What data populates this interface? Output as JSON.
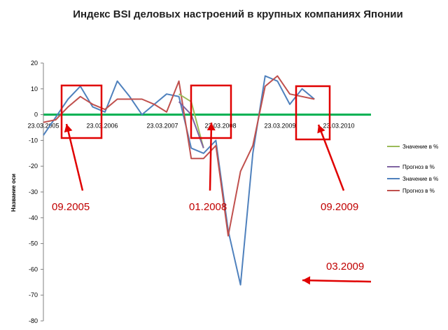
{
  "chart_data": {
    "type": "line",
    "title": "Индекс BSI деловых настроений в крупных компаниях Японии",
    "ylabel": "Название оси",
    "ylim": [
      -80,
      20
    ],
    "yticks": [
      20,
      10,
      0,
      -10,
      -20,
      -30,
      -40,
      -50,
      -60,
      -70,
      -80
    ],
    "xtick_labels": [
      "23.03.2005",
      "23.03.2006",
      "23.03.2007",
      "23.03.2008",
      "23.03.2009",
      "23.03.2010"
    ],
    "zero_line_color": "#00b050",
    "series": [
      {
        "name": "Значение в %",
        "color": "#9bbb59",
        "x": [
          "2007 Q4",
          "2008 Q1",
          "2008 Q2"
        ],
        "values": [
          8,
          5,
          -13
        ]
      },
      {
        "name": "Прогноз в %",
        "color": "#8064a2",
        "x": [
          "2007 Q4",
          "2008 Q1",
          "2008 Q2"
        ],
        "values": [
          5,
          0,
          -13
        ]
      },
      {
        "name": "Значение в %",
        "color": "#4f81bd",
        "x": [
          "2005 Q1",
          "2005 Q2",
          "2005 Q3",
          "2005 Q4",
          "2006 Q1",
          "2006 Q2",
          "2006 Q3",
          "2006 Q4",
          "2007 Q1",
          "2007 Q2",
          "2007 Q3",
          "2007 Q4",
          "2008 Q1",
          "2008 Q2",
          "2008 Q3",
          "2008 Q4",
          "2009 Q1",
          "2009 Q2",
          "2009 Q3",
          "2009 Q4",
          "2010 Q1",
          "2010 Q2",
          "2010 Q3"
        ],
        "values": [
          -8,
          -1,
          6,
          11,
          3,
          1,
          13,
          7,
          0,
          4,
          8,
          7,
          -13,
          -15,
          -10,
          -45,
          -66,
          -15,
          15,
          13,
          4,
          10,
          6
        ]
      },
      {
        "name": "Прогноз в %",
        "color": "#c0504d",
        "x": [
          "2005 Q1",
          "2005 Q2",
          "2005 Q3",
          "2005 Q4",
          "2006 Q1",
          "2006 Q2",
          "2006 Q3",
          "2006 Q4",
          "2007 Q1",
          "2007 Q2",
          "2007 Q3",
          "2007 Q4",
          "2008 Q1",
          "2008 Q2",
          "2008 Q3",
          "2008 Q4",
          "2009 Q1",
          "2009 Q2",
          "2009 Q3",
          "2009 Q4",
          "2010 Q1",
          "2010 Q2",
          "2010 Q3"
        ],
        "values": [
          -3,
          -2,
          3,
          7,
          4,
          2,
          6,
          6,
          6,
          4,
          1,
          13,
          -17,
          -17,
          -12,
          -47,
          -22,
          -12,
          11,
          15,
          8,
          7,
          6
        ]
      }
    ],
    "annotations": [
      {
        "text": "09.2005"
      },
      {
        "text": "01.2008"
      },
      {
        "text": "09.2009"
      },
      {
        "text": "03.2009"
      }
    ]
  }
}
